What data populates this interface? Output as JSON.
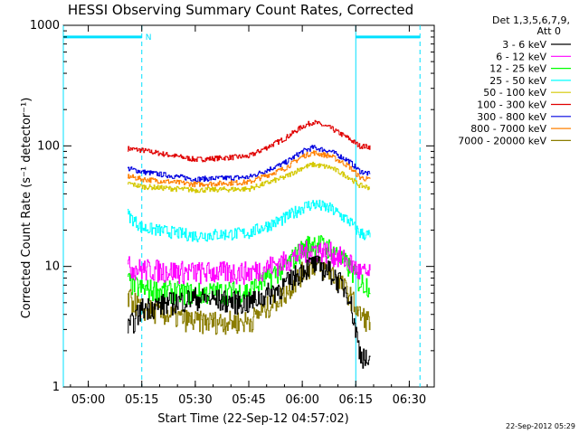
{
  "chart_data": {
    "type": "line",
    "title": "HESSI Observing Summary Count Rates, Corrected",
    "xlabel": "Start Time (22-Sep-12 04:57:02)",
    "ylabel": "Corrected Count Rate (s⁻¹ detector⁻¹)",
    "y_scale": "log",
    "ylim": [
      1,
      1000
    ],
    "xlim": [
      "04:53",
      "06:37"
    ],
    "x_tick_labels": [
      "05:00",
      "05:15",
      "05:30",
      "05:45",
      "06:00",
      "06:15",
      "06:30"
    ],
    "y_tick_labels": [
      "1",
      "10",
      "100",
      "1000"
    ],
    "legend": {
      "placement": "right-outside",
      "header": [
        "Det 1,3,5,6,7,9,",
        "Att 0"
      ],
      "entries": [
        {
          "label": "3 - 6 keV",
          "color": "#000000"
        },
        {
          "label": "6 - 12 keV",
          "color": "#ff00ff"
        },
        {
          "label": "12 - 25 keV",
          "color": "#00ff00"
        },
        {
          "label": "25 - 50 keV",
          "color": "#00ffff"
        },
        {
          "label": "50 - 100 keV",
          "color": "#d4c800"
        },
        {
          "label": "100 - 300 keV",
          "color": "#e00000"
        },
        {
          "label": "300 - 800 keV",
          "color": "#0000e0"
        },
        {
          "label": "800 - 7000 keV",
          "color": "#ff8000"
        },
        {
          "label": "7000 - 20000 keV",
          "color": "#8b7d00"
        }
      ]
    },
    "series": [
      {
        "color": "#e00000",
        "x": [
          "05:11",
          "05:15",
          "05:30",
          "05:45",
          "05:55",
          "06:00",
          "06:03",
          "06:08",
          "06:13",
          "06:16",
          "06:19"
        ],
        "y": [
          95,
          92,
          77,
          82,
          115,
          145,
          158,
          140,
          115,
          100,
          98
        ]
      },
      {
        "color": "#0000e0",
        "x": [
          "05:11",
          "05:15",
          "05:30",
          "05:45",
          "05:55",
          "06:00",
          "06:03",
          "06:08",
          "06:13",
          "06:16",
          "06:19"
        ],
        "y": [
          65,
          61,
          53,
          55,
          72,
          90,
          97,
          90,
          75,
          62,
          58
        ]
      },
      {
        "color": "#ff8000",
        "x": [
          "05:11",
          "05:15",
          "05:30",
          "05:45",
          "05:55",
          "06:00",
          "06:03",
          "06:08",
          "06:13",
          "06:16",
          "06:19"
        ],
        "y": [
          56,
          53,
          48,
          50,
          65,
          82,
          88,
          82,
          68,
          55,
          52
        ]
      },
      {
        "color": "#d4c800",
        "x": [
          "05:11",
          "05:15",
          "05:30",
          "05:45",
          "05:55",
          "06:00",
          "06:03",
          "06:08",
          "06:13",
          "06:16",
          "06:19"
        ],
        "y": [
          49,
          46,
          43,
          44,
          55,
          66,
          70,
          66,
          55,
          47,
          45
        ]
      },
      {
        "color": "#00ffff",
        "x": [
          "05:11",
          "05:15",
          "05:30",
          "05:45",
          "05:55",
          "06:00",
          "06:03",
          "06:08",
          "06:13",
          "06:16",
          "06:19"
        ],
        "y": [
          27,
          21,
          18,
          19,
          25,
          31,
          33,
          30,
          24,
          19,
          18
        ]
      },
      {
        "color": "#00ff00",
        "x": [
          "05:11",
          "05:15",
          "05:30",
          "05:45",
          "05:55",
          "06:00",
          "06:03",
          "06:08",
          "06:13",
          "06:16",
          "06:19"
        ],
        "y": [
          7.5,
          6.5,
          6.0,
          6.3,
          10,
          14,
          16,
          14,
          10,
          7.5,
          7
        ]
      },
      {
        "color": "#ff00ff",
        "x": [
          "05:11",
          "05:15",
          "05:30",
          "05:45",
          "05:55",
          "06:00",
          "06:03",
          "06:08",
          "06:13",
          "06:16",
          "06:19"
        ],
        "y": [
          10,
          9.5,
          9.0,
          9.0,
          11,
          13,
          14,
          13,
          11,
          9,
          8.5
        ]
      },
      {
        "color": "#8b7d00",
        "x": [
          "05:11",
          "05:15",
          "05:30",
          "05:45",
          "05:55",
          "06:00",
          "06:03",
          "06:08",
          "06:13",
          "06:16",
          "06:19"
        ],
        "y": [
          5.5,
          4.5,
          3.5,
          3.5,
          6,
          9,
          10.5,
          9,
          6,
          4,
          3.5
        ]
      },
      {
        "color": "#000000",
        "x": [
          "05:11",
          "05:15",
          "05:30",
          "05:45",
          "05:55",
          "06:00",
          "06:03",
          "06:08",
          "06:13",
          "06:16",
          "06:19"
        ],
        "y": [
          3.0,
          4.5,
          5.5,
          5.0,
          7,
          9.5,
          10.5,
          9,
          6,
          2.0,
          1.5
        ]
      }
    ],
    "annotations": [
      {
        "type": "night-bar",
        "color": "#00e0ff",
        "x_start": "04:53",
        "x_end": "05:15",
        "y": 800,
        "label": "N"
      },
      {
        "type": "night-bar",
        "color": "#00e0ff",
        "x_start": "06:15",
        "x_end": "06:33",
        "y": 800,
        "label": ""
      }
    ],
    "vertical_lines": [
      {
        "x": "04:53",
        "style": "solid"
      },
      {
        "x": "05:15",
        "style": "dashed"
      },
      {
        "x": "06:15",
        "style": "solid"
      },
      {
        "x": "06:33",
        "style": "dashed"
      }
    ],
    "footer_timestamp": "22-Sep-2012 05:29"
  }
}
